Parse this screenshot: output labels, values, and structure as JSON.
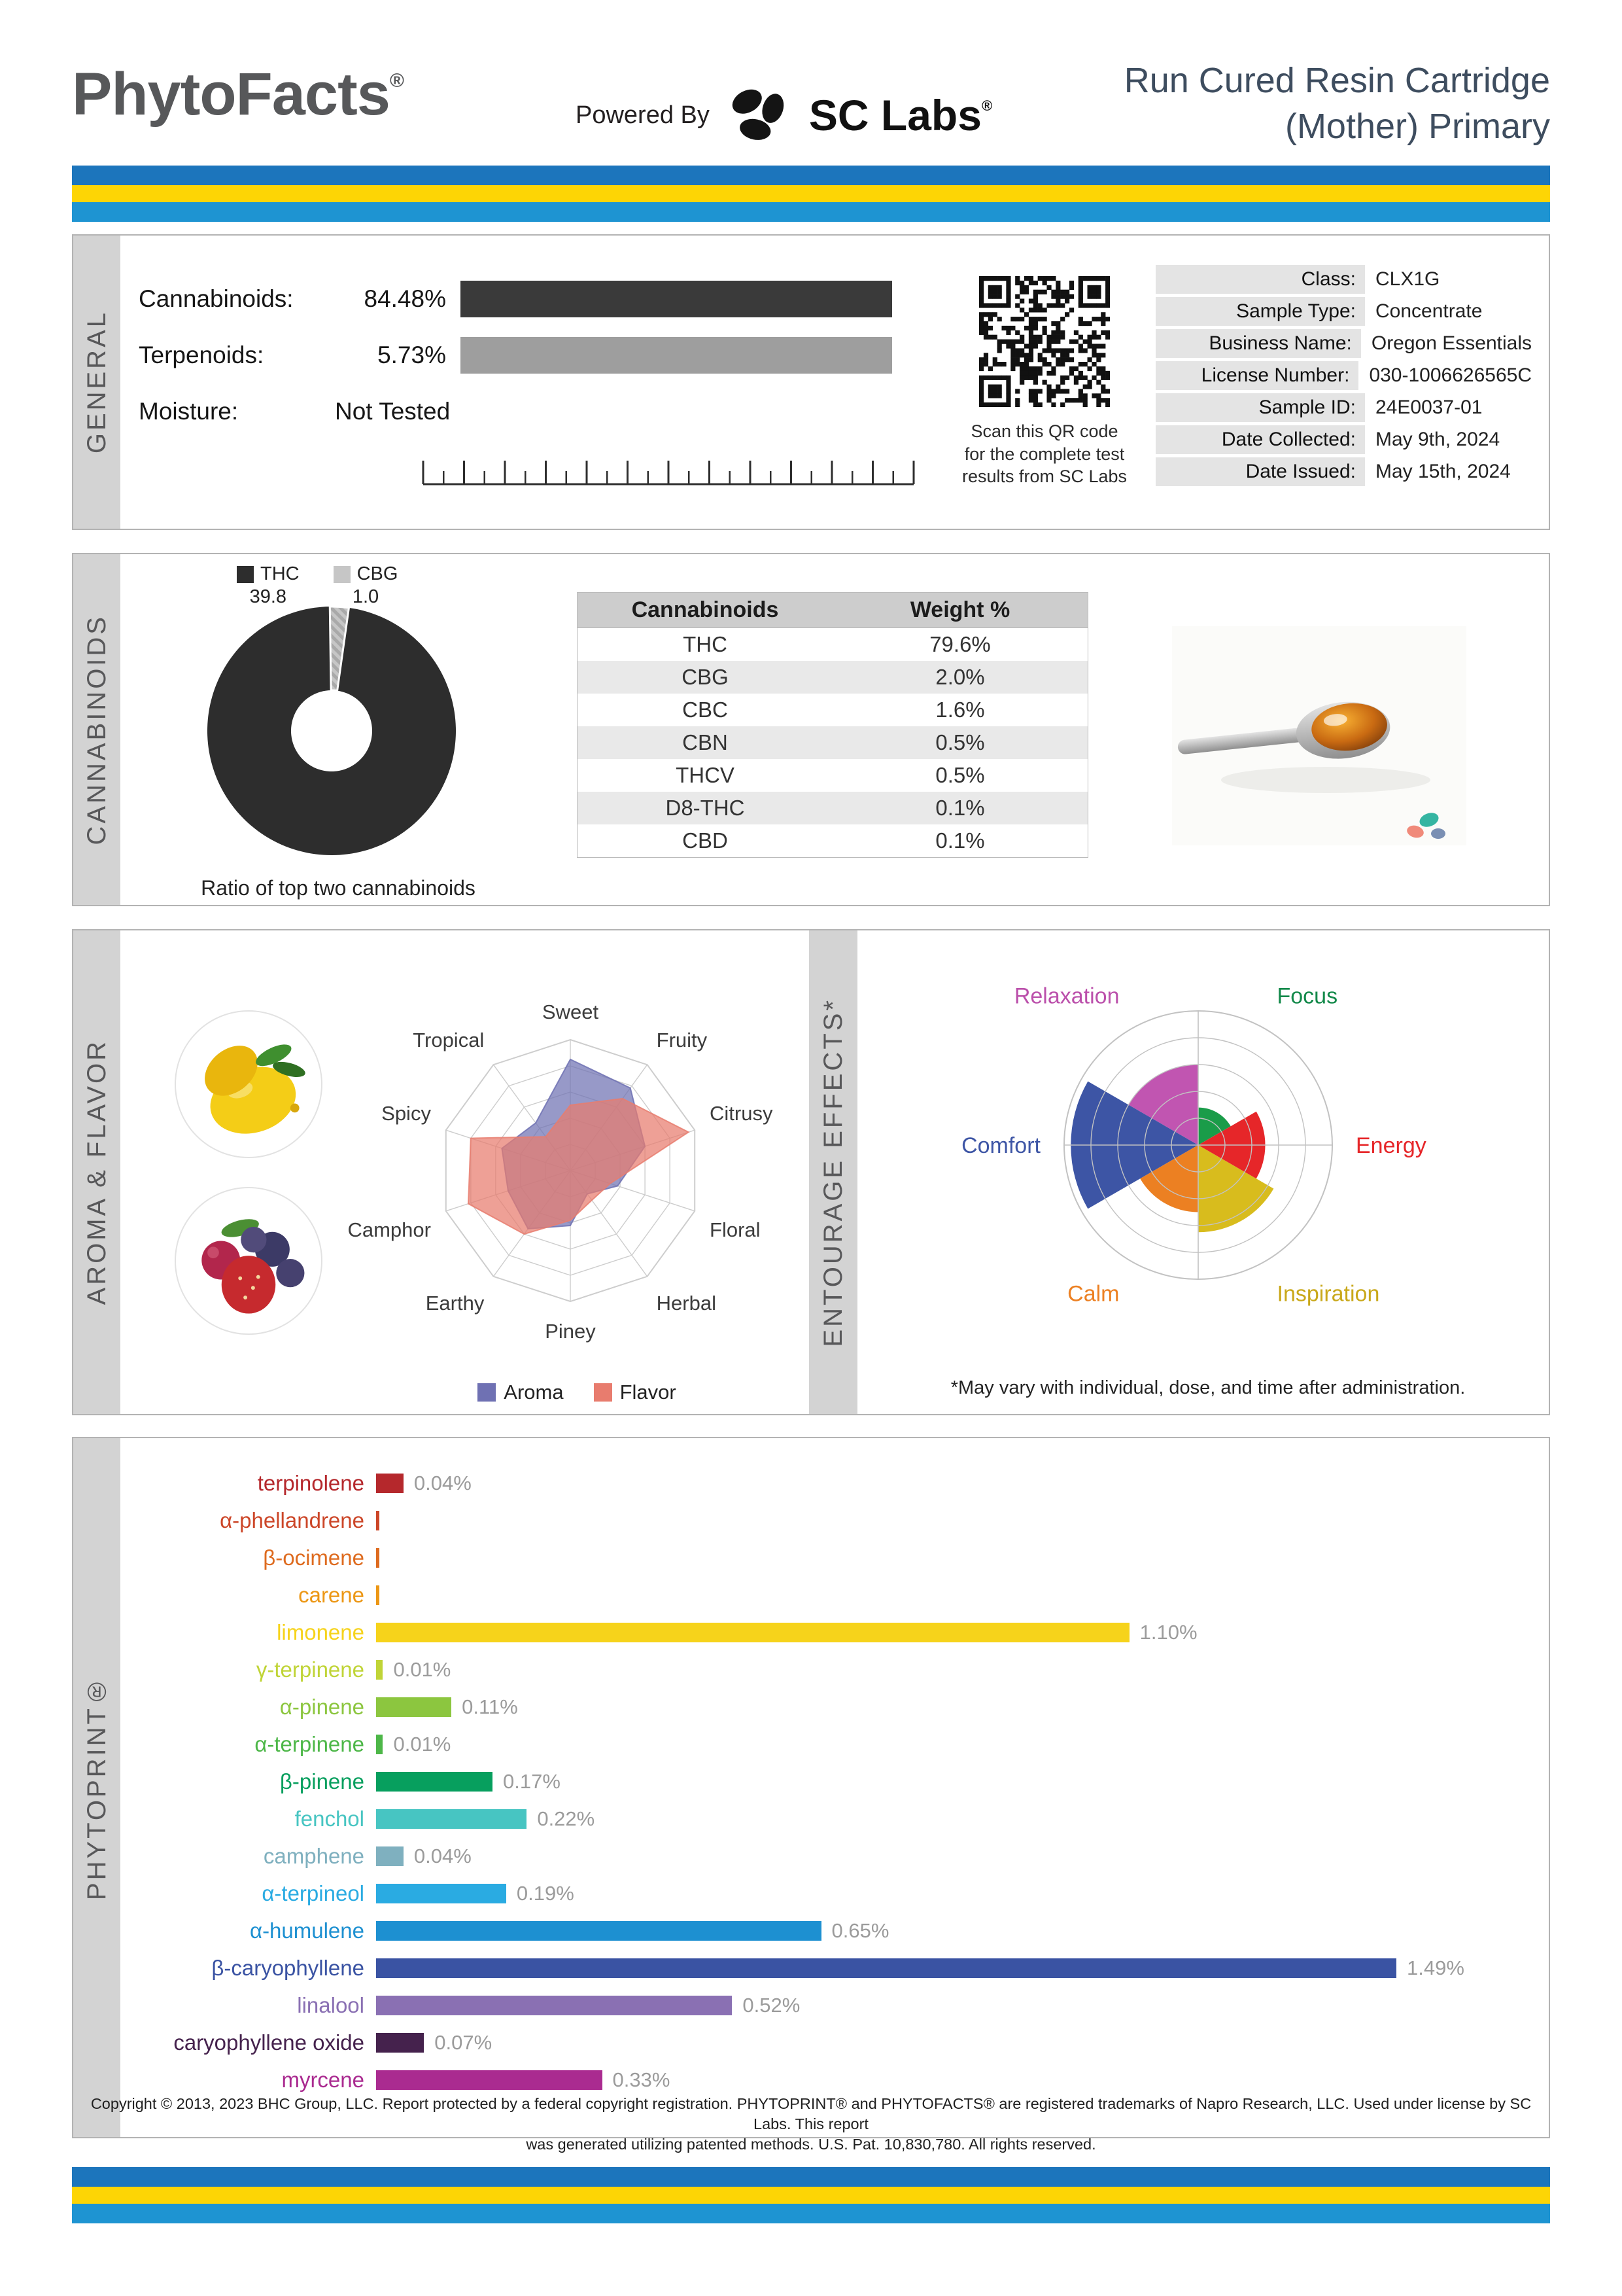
{
  "colors": {
    "stripes": [
      "#1c75bc",
      "#fdd505",
      "#1e94d2"
    ],
    "bar_dark": "#3a3a3a",
    "bar_gray": "#9e9e9e"
  },
  "header": {
    "logo_text": "PhytoFacts",
    "logo_reg": "®",
    "powered_by": "Powered By",
    "sclabs_text": "SC Labs",
    "sclabs_reg": "®",
    "title_line1": "Run Cured Resin Cartridge",
    "title_line2": "(Mother) Primary"
  },
  "general": {
    "section_label": "GENERAL",
    "stats": [
      {
        "label": "Cannabinoids:",
        "value": "84.48%",
        "bar": "dark"
      },
      {
        "label": "Terpenoids:",
        "value": "5.73%",
        "bar": "gray"
      },
      {
        "label": "Moisture:",
        "value": "Not Tested",
        "bar": "none"
      }
    ],
    "qr_caption_lines": [
      "Scan this QR code",
      "for the complete test",
      "results from SC Labs"
    ],
    "info": [
      {
        "label": "Class:",
        "value": "CLX1G"
      },
      {
        "label": "Sample Type:",
        "value": "Concentrate"
      },
      {
        "label": "Business Name:",
        "value": "Oregon Essentials"
      },
      {
        "label": "License Number:",
        "value": "030-1006626565C"
      },
      {
        "label": "Sample ID:",
        "value": "24E0037-01"
      },
      {
        "label": "Date Collected:",
        "value": "May 9th, 2024"
      },
      {
        "label": "Date Issued:",
        "value": "May 15th, 2024"
      }
    ]
  },
  "cannabinoids": {
    "section_label": "CANNABINOIDS"
  },
  "aroma_flavor": {
    "section_label": "AROMA & FLAVOR"
  },
  "entourage": {
    "section_label": "ENTOURAGE EFFECTS*",
    "footnote": "*May vary with individual, dose, and time after administration."
  },
  "phytoprint": {
    "section_label": "PHYTOPRINT®"
  },
  "footer": {
    "lines": [
      "Copyright © 2013, 2023 BHC Group, LLC. Report protected by a federal copyright registration. PHYTOPRINT® and PHYTOFACTS® are registered trademarks of Napro Research, LLC. Used under license by SC Labs. This report",
      "was generated utilizing patented methods. U.S. Pat. 10,830,780. All rights reserved."
    ]
  },
  "chart_data": [
    {
      "id": "cannabinoid_ratio",
      "type": "pie",
      "title": "Ratio of top two cannabinoids",
      "labels": [
        "THC",
        "CBG"
      ],
      "values": [
        39.8,
        1.0
      ],
      "colors": [
        "#2d2d2d",
        "#c6c6c6"
      ],
      "donut": true
    },
    {
      "id": "cannabinoid_table",
      "type": "table",
      "headers": [
        "Cannabinoids",
        "Weight %"
      ],
      "rows": [
        [
          "THC",
          "79.6%"
        ],
        [
          "CBG",
          "2.0%"
        ],
        [
          "CBC",
          "1.6%"
        ],
        [
          "CBN",
          "0.5%"
        ],
        [
          "THCV",
          "0.5%"
        ],
        [
          "D8-THC",
          "0.1%"
        ],
        [
          "CBD",
          "0.1%"
        ]
      ]
    },
    {
      "id": "aroma_flavor_radar",
      "type": "radar",
      "axes": [
        "Sweet",
        "Fruity",
        "Citrusy",
        "Floral",
        "Herbal",
        "Piney",
        "Earthy",
        "Camphor",
        "Spicy",
        "Tropical"
      ],
      "scale": [
        0,
        1
      ],
      "legend_position": "bottom",
      "series": [
        {
          "name": "Aroma",
          "color": "#6f71b3",
          "values": [
            0.85,
            0.78,
            0.6,
            0.38,
            0.22,
            0.42,
            0.55,
            0.5,
            0.55,
            0.45
          ]
        },
        {
          "name": "Flavor",
          "color": "#e87c6e",
          "values": [
            0.5,
            0.68,
            0.95,
            0.32,
            0.28,
            0.38,
            0.6,
            0.82,
            0.8,
            0.32
          ]
        }
      ]
    },
    {
      "id": "entourage_effects",
      "type": "polar",
      "rings": 5,
      "sectors": [
        {
          "name": "Focus",
          "value": 0.28,
          "start": 30,
          "end": 90,
          "color": "#1a9c49",
          "text_color": "#13894a"
        },
        {
          "name": "Relaxation",
          "value": 0.6,
          "start": 90,
          "end": 150,
          "color": "#c155b1",
          "text_color": "#bb50ab"
        },
        {
          "name": "Comfort",
          "value": 0.95,
          "start": 150,
          "end": 210,
          "color": "#3d55a5",
          "text_color": "#3d55a5"
        },
        {
          "name": "Calm",
          "value": 0.5,
          "start": 210,
          "end": 270,
          "color": "#ec8022",
          "text_color": "#ec8022"
        },
        {
          "name": "Inspiration",
          "value": 0.65,
          "start": 270,
          "end": 330,
          "color": "#d8bc1d",
          "text_color": "#c9a81a"
        },
        {
          "name": "Energy",
          "value": 0.5,
          "start": 330,
          "end": 390,
          "color": "#e62629",
          "text_color": "#e62629"
        }
      ]
    },
    {
      "id": "phytoprint_bars",
      "type": "bar",
      "orientation": "horizontal",
      "unit": "%",
      "items": [
        {
          "name": "terpinolene",
          "value": 0.04,
          "label": "0.04%",
          "color": "#b5282c"
        },
        {
          "name": "α-phellandrene",
          "value": 0.002,
          "label": "",
          "color": "#cc4628"
        },
        {
          "name": "β-ocimene",
          "value": 0.002,
          "label": "",
          "color": "#de6b1f"
        },
        {
          "name": "carene",
          "value": 0.002,
          "label": "",
          "color": "#ec9715"
        },
        {
          "name": "limonene",
          "value": 1.1,
          "label": "1.10%",
          "color": "#f6d31b"
        },
        {
          "name": "γ-terpinene",
          "value": 0.01,
          "label": "0.01%",
          "color": "#c0d437"
        },
        {
          "name": "α-pinene",
          "value": 0.11,
          "label": "0.11%",
          "color": "#8cc63f"
        },
        {
          "name": "α-terpinene",
          "value": 0.01,
          "label": "0.01%",
          "color": "#4db748"
        },
        {
          "name": "β-pinene",
          "value": 0.17,
          "label": "0.17%",
          "color": "#079f5e"
        },
        {
          "name": "fenchol",
          "value": 0.22,
          "label": "0.22%",
          "color": "#47c5c2"
        },
        {
          "name": "camphene",
          "value": 0.04,
          "label": "0.04%",
          "color": "#7fb0bf"
        },
        {
          "name": "α-terpineol",
          "value": 0.19,
          "label": "0.19%",
          "color": "#2aabe2"
        },
        {
          "name": "α-humulene",
          "value": 0.65,
          "label": "0.65%",
          "color": "#1d90d1"
        },
        {
          "name": "β-caryophyllene",
          "value": 1.49,
          "label": "1.49%",
          "color": "#3a53a3"
        },
        {
          "name": "linalool",
          "value": 0.52,
          "label": "0.52%",
          "color": "#8a70b3"
        },
        {
          "name": "caryophyllene oxide",
          "value": 0.07,
          "label": "0.07%",
          "color": "#45224d"
        },
        {
          "name": "myrcene",
          "value": 0.33,
          "label": "0.33%",
          "color": "#aa2b90"
        }
      ]
    }
  ]
}
